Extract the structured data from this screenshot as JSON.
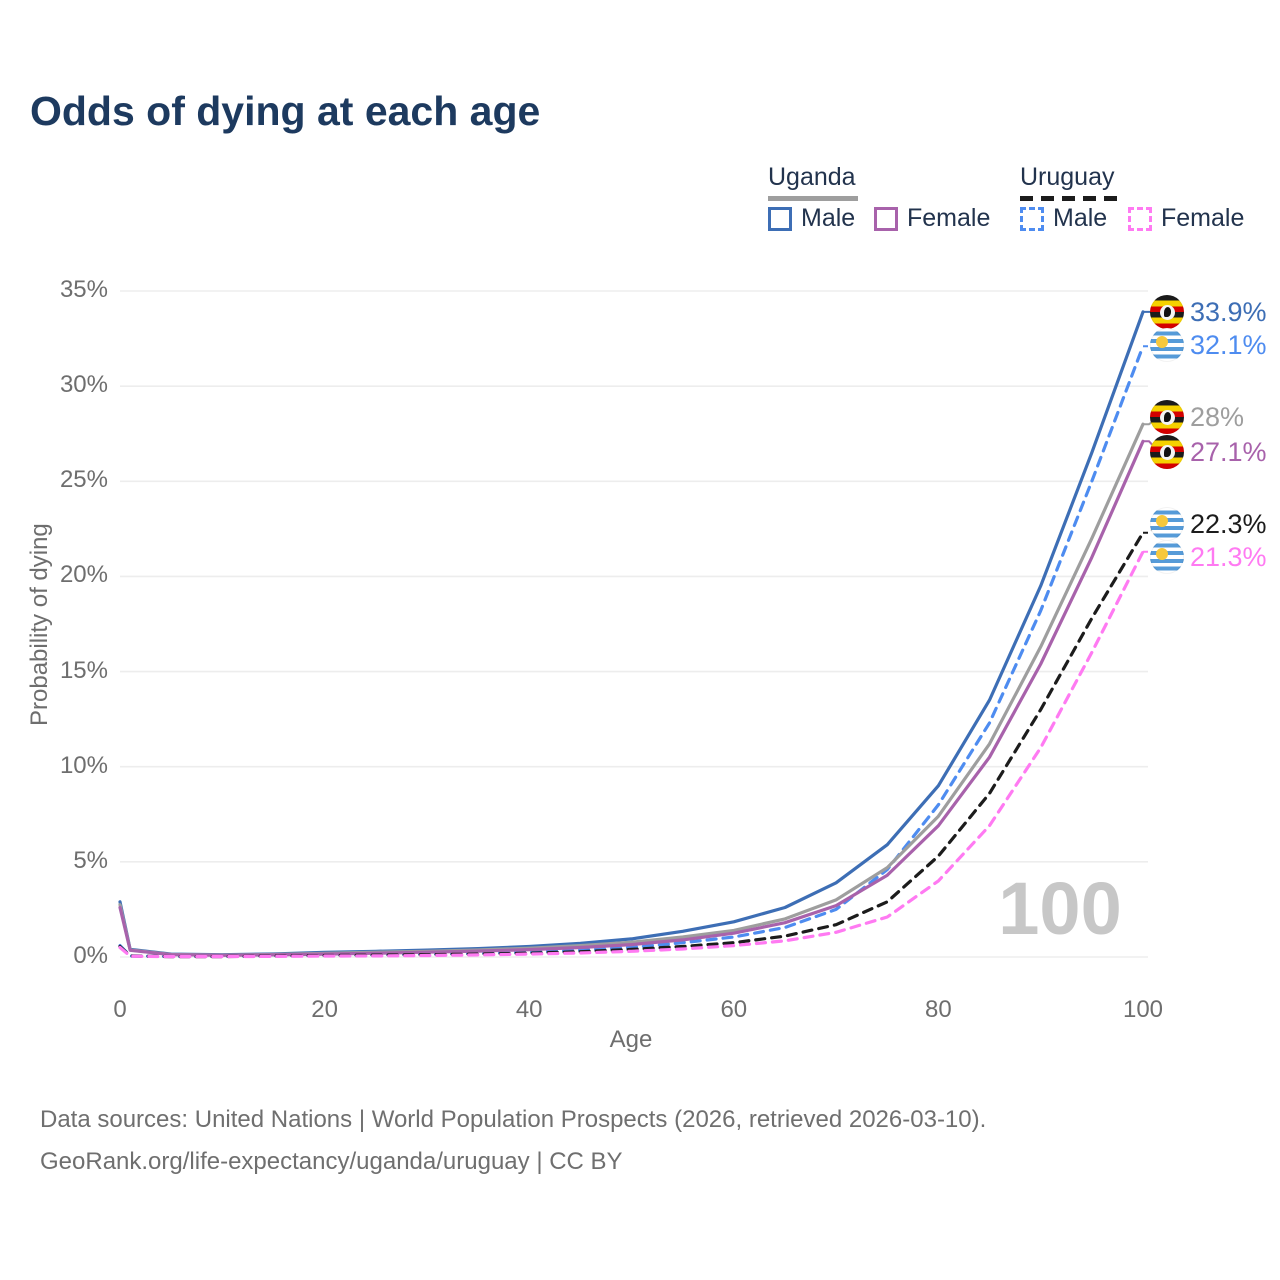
{
  "title": "Odds of dying at each age",
  "legend": {
    "uganda": {
      "label": "Uganda",
      "male_label": "Male",
      "female_label": "Female"
    },
    "uruguay": {
      "label": "Uruguay",
      "male_label": "Male",
      "female_label": "Female"
    }
  },
  "colors": {
    "title_text": "#1d3a5f",
    "axis_text": "#6e6e6e",
    "gridline": "#ededed",
    "watermark_text": "#c7c7c7",
    "legend_text": "#22334d",
    "footer_text": "#6f6f6f"
  },
  "icons": {
    "uganda_flag": "uganda-flag-icon",
    "uruguay_flag": "uruguay-flag-icon"
  },
  "chart_data": {
    "type": "line",
    "title": "Odds of dying at each age",
    "xlabel": "Age",
    "ylabel": "Probability of dying",
    "xlim": [
      0,
      100
    ],
    "ylim": [
      0,
      35
    ],
    "grid": "horizontal-only",
    "legend_position": "top-right",
    "watermark": "100",
    "x_ticks": [
      0,
      20,
      40,
      60,
      80,
      100
    ],
    "x_tick_labels": [
      "0",
      "20",
      "40",
      "60",
      "80",
      "100"
    ],
    "y_ticks": [
      0,
      5,
      10,
      15,
      20,
      25,
      30,
      35
    ],
    "y_tick_labels": [
      "0%",
      "5%",
      "10%",
      "15%",
      "20%",
      "25%",
      "30%",
      "35%"
    ],
    "x": [
      0,
      1,
      5,
      10,
      15,
      20,
      25,
      30,
      35,
      40,
      45,
      50,
      55,
      60,
      65,
      70,
      75,
      80,
      85,
      90,
      95,
      100
    ],
    "series": [
      {
        "name": "Uganda Male",
        "country": "Uganda",
        "sex": "male",
        "style": "solid",
        "color": "#3d6eb5",
        "end_label": "33.9%",
        "flag": "uganda",
        "values": [
          2.9,
          0.4,
          0.15,
          0.12,
          0.16,
          0.24,
          0.3,
          0.36,
          0.44,
          0.55,
          0.72,
          0.95,
          1.35,
          1.85,
          2.6,
          3.9,
          5.9,
          9.0,
          13.5,
          19.5,
          26.5,
          33.9
        ]
      },
      {
        "name": "Uruguay Male",
        "country": "Uruguay",
        "sex": "male",
        "style": "dashed",
        "color": "#4e8cf0",
        "end_label": "32.1%",
        "flag": "uruguay",
        "values": [
          0.6,
          0.05,
          0.03,
          0.03,
          0.07,
          0.11,
          0.13,
          0.15,
          0.19,
          0.25,
          0.35,
          0.5,
          0.75,
          1.05,
          1.55,
          2.5,
          4.6,
          8.0,
          12.3,
          18.2,
          25.0,
          32.1
        ]
      },
      {
        "name": "Uganda Both sexes",
        "country": "Uganda",
        "sex": "both",
        "style": "solid",
        "color": "#9e9e9e",
        "end_label": "28%",
        "flag": "uganda",
        "values": [
          2.75,
          0.37,
          0.13,
          0.1,
          0.13,
          0.19,
          0.25,
          0.3,
          0.37,
          0.46,
          0.6,
          0.78,
          1.05,
          1.4,
          2.0,
          3.0,
          4.7,
          7.4,
          11.2,
          16.3,
          22.0,
          28.0
        ]
      },
      {
        "name": "Uganda Female",
        "country": "Uganda",
        "sex": "female",
        "style": "solid",
        "color": "#a862ab",
        "end_label": "27.1%",
        "flag": "uganda",
        "values": [
          2.6,
          0.35,
          0.12,
          0.09,
          0.11,
          0.15,
          0.2,
          0.25,
          0.31,
          0.39,
          0.5,
          0.65,
          0.9,
          1.25,
          1.8,
          2.7,
          4.3,
          6.9,
          10.5,
          15.4,
          21.0,
          27.1
        ]
      },
      {
        "name": "Uruguay Both sexes",
        "country": "Uruguay",
        "sex": "both",
        "style": "dashed",
        "color": "#1c1c1c",
        "end_label": "22.3%",
        "flag": "uruguay",
        "values": [
          0.55,
          0.05,
          0.02,
          0.02,
          0.05,
          0.08,
          0.1,
          0.12,
          0.15,
          0.2,
          0.28,
          0.4,
          0.55,
          0.75,
          1.1,
          1.7,
          2.9,
          5.3,
          8.6,
          13.0,
          17.8,
          22.3
        ]
      },
      {
        "name": "Uruguay Female",
        "country": "Uruguay",
        "sex": "female",
        "style": "dashed",
        "color": "#ff7af2",
        "end_label": "21.3%",
        "flag": "uruguay",
        "values": [
          0.5,
          0.04,
          0.02,
          0.02,
          0.03,
          0.05,
          0.06,
          0.08,
          0.11,
          0.15,
          0.21,
          0.3,
          0.42,
          0.6,
          0.85,
          1.3,
          2.1,
          4.0,
          6.9,
          11.0,
          16.0,
          21.3
        ]
      }
    ]
  },
  "footer": {
    "line1": "Data sources: United Nations | World Population Prospects (2026, retrieved 2026-03-10).",
    "line2": "GeoRank.org/life-expectancy/uganda/uruguay | CC BY"
  }
}
